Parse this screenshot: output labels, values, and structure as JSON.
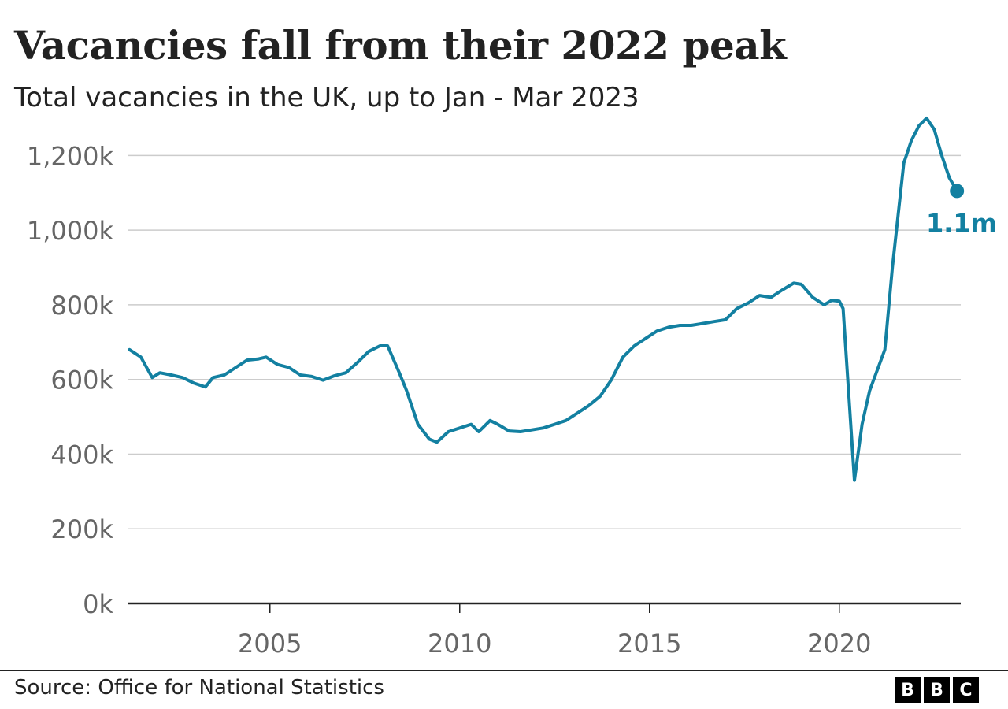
{
  "title": "Vacancies fall from their 2022 peak",
  "subtitle": "Total vacancies in the UK, up to Jan - Mar 2023",
  "source": "Source: Office for National Statistics",
  "logo": [
    "B",
    "B",
    "C"
  ],
  "chart_data": {
    "type": "line",
    "title": "Vacancies fall from their 2022 peak",
    "subtitle": "Total vacancies in the UK, up to Jan - Mar 2023",
    "xlabel": "",
    "ylabel": "",
    "xlim": [
      2001.25,
      2023.2
    ],
    "ylim": [
      0,
      1300000
    ],
    "x_ticks": [
      2005,
      2010,
      2015,
      2020
    ],
    "x_tick_labels": [
      "2005",
      "2010",
      "2015",
      "2020"
    ],
    "y_ticks": [
      0,
      200000,
      400000,
      600000,
      800000,
      1000000,
      1200000
    ],
    "y_tick_labels": [
      "0k",
      "200k",
      "400k",
      "600k",
      "800k",
      "1,000k",
      "1,200k"
    ],
    "grid": true,
    "color": "#1380A1",
    "end_label": "1.1m",
    "series": [
      {
        "x": [
          2001.3,
          2001.6,
          2001.9,
          2002.1,
          2002.4,
          2002.7,
          2003.0,
          2003.3,
          2003.5,
          2003.8,
          2004.1,
          2004.4,
          2004.7,
          2004.9,
          2005.2,
          2005.5,
          2005.8,
          2006.1,
          2006.4,
          2006.7,
          2007.0,
          2007.3,
          2007.6,
          2007.9,
          2008.1,
          2008.4,
          2008.6,
          2008.9,
          2009.2,
          2009.4,
          2009.7,
          2010.0,
          2010.3,
          2010.5,
          2010.8,
          2011.0,
          2011.3,
          2011.6,
          2011.9,
          2012.2,
          2012.5,
          2012.8,
          2013.1,
          2013.4,
          2013.7,
          2014.0,
          2014.3,
          2014.6,
          2014.9,
          2015.2,
          2015.5,
          2015.8,
          2016.1,
          2016.4,
          2016.7,
          2017.0,
          2017.3,
          2017.6,
          2017.9,
          2018.2,
          2018.5,
          2018.8,
          2019.0,
          2019.3,
          2019.6,
          2019.8,
          2020.0,
          2020.1,
          2020.4,
          2020.6,
          2020.8,
          2021.0,
          2021.2,
          2021.4,
          2021.7,
          2021.9,
          2022.1,
          2022.3,
          2022.5,
          2022.7,
          2022.9,
          2023.1
        ],
        "values": [
          680000,
          660000,
          605000,
          618000,
          612000,
          605000,
          590000,
          580000,
          605000,
          612000,
          632000,
          652000,
          655000,
          660000,
          640000,
          632000,
          612000,
          608000,
          598000,
          610000,
          618000,
          645000,
          675000,
          690000,
          690000,
          620000,
          570000,
          480000,
          440000,
          432000,
          460000,
          470000,
          480000,
          460000,
          490000,
          480000,
          462000,
          460000,
          465000,
          470000,
          480000,
          490000,
          510000,
          530000,
          555000,
          600000,
          660000,
          690000,
          710000,
          730000,
          740000,
          745000,
          745000,
          750000,
          755000,
          760000,
          790000,
          805000,
          825000,
          820000,
          840000,
          858000,
          855000,
          820000,
          800000,
          812000,
          810000,
          790000,
          330000,
          480000,
          570000,
          625000,
          680000,
          900000,
          1180000,
          1240000,
          1280000,
          1300000,
          1270000,
          1200000,
          1140000,
          1105000
        ]
      }
    ]
  }
}
